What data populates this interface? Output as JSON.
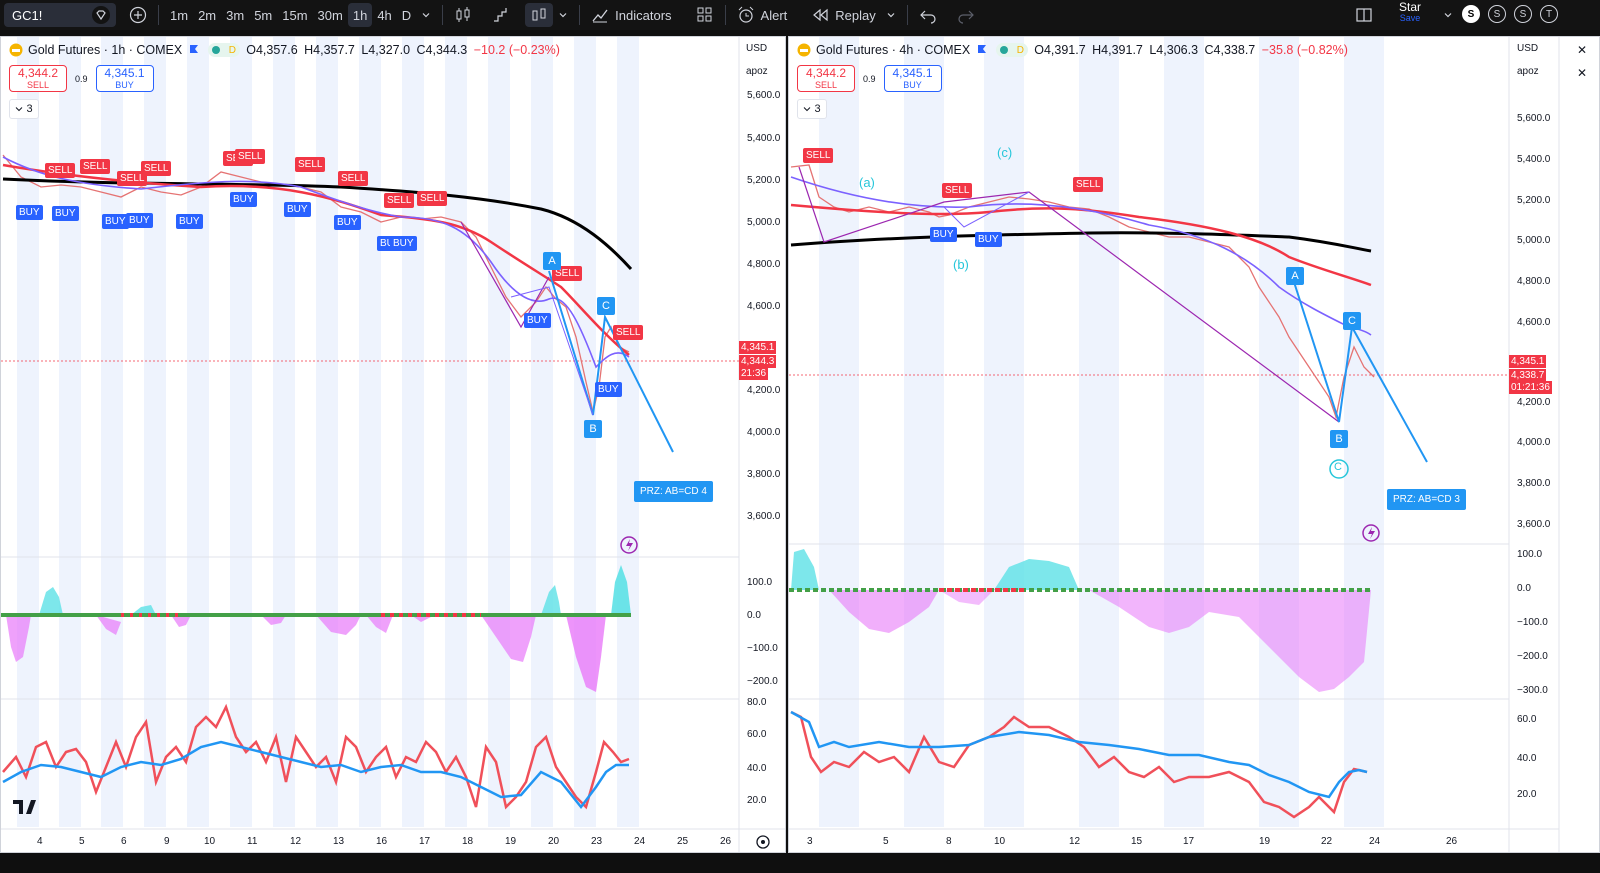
{
  "toolbar": {
    "symbol": "GC1!",
    "intervals": [
      "1m",
      "2m",
      "3m",
      "5m",
      "15m",
      "30m",
      "1h",
      "4h",
      "D"
    ],
    "active_interval": "1h",
    "indicators_label": "Indicators",
    "alert_label": "Alert",
    "replay_label": "Replay",
    "star_label": "Star",
    "save_label": "Save",
    "avatars": [
      "S",
      "S",
      "S",
      "T"
    ]
  },
  "left_chart": {
    "title": "Gold Futures · 1h · COMEX",
    "open": "O4,357.6",
    "high": "H4,357.7",
    "low": "L4,327.0",
    "close": "C4,344.3",
    "change": "−10.2 (−0.23%)",
    "sell_price": "4,344.2",
    "sell_label": "SELL",
    "spread": "0.9",
    "buy_price": "4,345.1",
    "buy_label": "BUY",
    "collapse_count": "3",
    "currency": "USD",
    "scale_mode": "apoz",
    "price_ticks": [
      "5,600.0",
      "5,400.0",
      "5,200.0",
      "5,000.0",
      "4,800.0",
      "4,600.0",
      "4,200.0",
      "4,000.0",
      "3,800.0",
      "3,600.0"
    ],
    "tag_buy": "4,345.1",
    "tag_last": "4,344.3",
    "tag_timer": "21:36",
    "macd_ticks": [
      "100.0",
      "0.0",
      "−100.0",
      "−200.0"
    ],
    "rsi_ticks": [
      "80.0",
      "60.0",
      "40.0",
      "20.0"
    ],
    "date_ticks": [
      "4",
      "5",
      "6",
      "9",
      "10",
      "11",
      "12",
      "13",
      "16",
      "17",
      "18",
      "19",
      "20",
      "23",
      "24",
      "25",
      "26"
    ],
    "prz_label": "PRZ: AB=CD 4",
    "pattern_points": [
      "A",
      "B",
      "C"
    ],
    "signal_sell": "SELL",
    "signal_buy": "BUY"
  },
  "right_chart": {
    "title": "Gold Futures · 4h · COMEX",
    "open": "O4,391.7",
    "high": "H4,391.7",
    "low": "L4,306.3",
    "close": "C4,338.7",
    "change": "−35.8 (−0.82%)",
    "sell_price": "4,344.2",
    "sell_label": "SELL",
    "spread": "0.9",
    "buy_price": "4,345.1",
    "buy_label": "BUY",
    "collapse_count": "3",
    "currency": "USD",
    "scale_mode": "apoz",
    "price_ticks": [
      "5,600.0",
      "5,400.0",
      "5,200.0",
      "5,000.0",
      "4,800.0",
      "4,600.0",
      "4,200.0",
      "4,000.0",
      "3,800.0",
      "3,600.0"
    ],
    "tag_buy": "4,345.1",
    "tag_last": "4,338.7",
    "tag_timer": "01:21:36",
    "macd_ticks": [
      "100.0",
      "0.0",
      "−100.0",
      "−200.0",
      "−300.0"
    ],
    "rsi_ticks": [
      "60.0",
      "40.0",
      "20.0"
    ],
    "date_ticks": [
      "3",
      "5",
      "8",
      "10",
      "12",
      "15",
      "17",
      "19",
      "22",
      "24",
      "26"
    ],
    "prz_label": "PRZ: AB=CD 3",
    "pattern_points": [
      "A",
      "B",
      "C"
    ],
    "wave_labels": [
      "(a)",
      "(b)",
      "(c)",
      "C"
    ],
    "signal_sell": "SELL",
    "signal_buy": "BUY"
  },
  "colors": {
    "sell": "#f23645",
    "buy": "#2962ff",
    "pattern": "#2196f3",
    "wave": "#9c27b0",
    "ema_long": "#000000",
    "ema_mid": "#f23645",
    "ema_fast": "#7b61ff"
  }
}
